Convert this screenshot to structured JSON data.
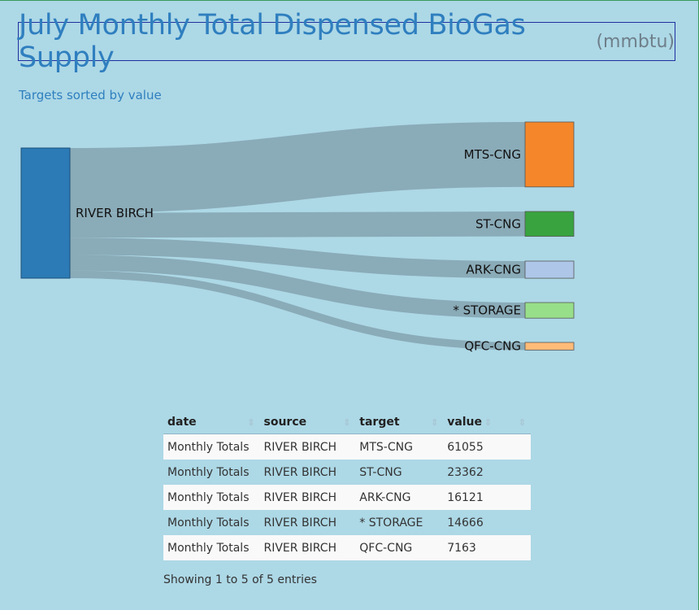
{
  "header": {
    "title": "July Monthly Total Dispensed BioGas Supply",
    "unit": "(mmbtu)",
    "subtitle": "Targets sorted by value"
  },
  "chart_data": {
    "type": "sankey",
    "source": {
      "name": "RIVER BIRCH",
      "color": "#2c7bb6"
    },
    "link_color": "#8aabb8",
    "flows": [
      {
        "target": "MTS-CNG",
        "value": 61055,
        "color": "#f5872a"
      },
      {
        "target": "ST-CNG",
        "value": 23362,
        "color": "#38a33f"
      },
      {
        "target": "ARK-CNG",
        "value": 16121,
        "color": "#aec7e8"
      },
      {
        "target": "* STORAGE",
        "value": 14666,
        "color": "#98df8a"
      },
      {
        "target": "QFC-CNG",
        "value": 7163,
        "color": "#ffbb78"
      }
    ]
  },
  "table": {
    "columns": [
      "date",
      "source",
      "target",
      "value"
    ],
    "rows": [
      [
        "Monthly Totals",
        "RIVER BIRCH",
        "MTS-CNG",
        "61055"
      ],
      [
        "Monthly Totals",
        "RIVER BIRCH",
        "ST-CNG",
        "23362"
      ],
      [
        "Monthly Totals",
        "RIVER BIRCH",
        "ARK-CNG",
        "16121"
      ],
      [
        "Monthly Totals",
        "RIVER BIRCH",
        "* STORAGE",
        "14666"
      ],
      [
        "Monthly Totals",
        "RIVER BIRCH",
        "QFC-CNG",
        "7163"
      ]
    ],
    "info": "Showing 1 to 5 of 5 entries"
  }
}
